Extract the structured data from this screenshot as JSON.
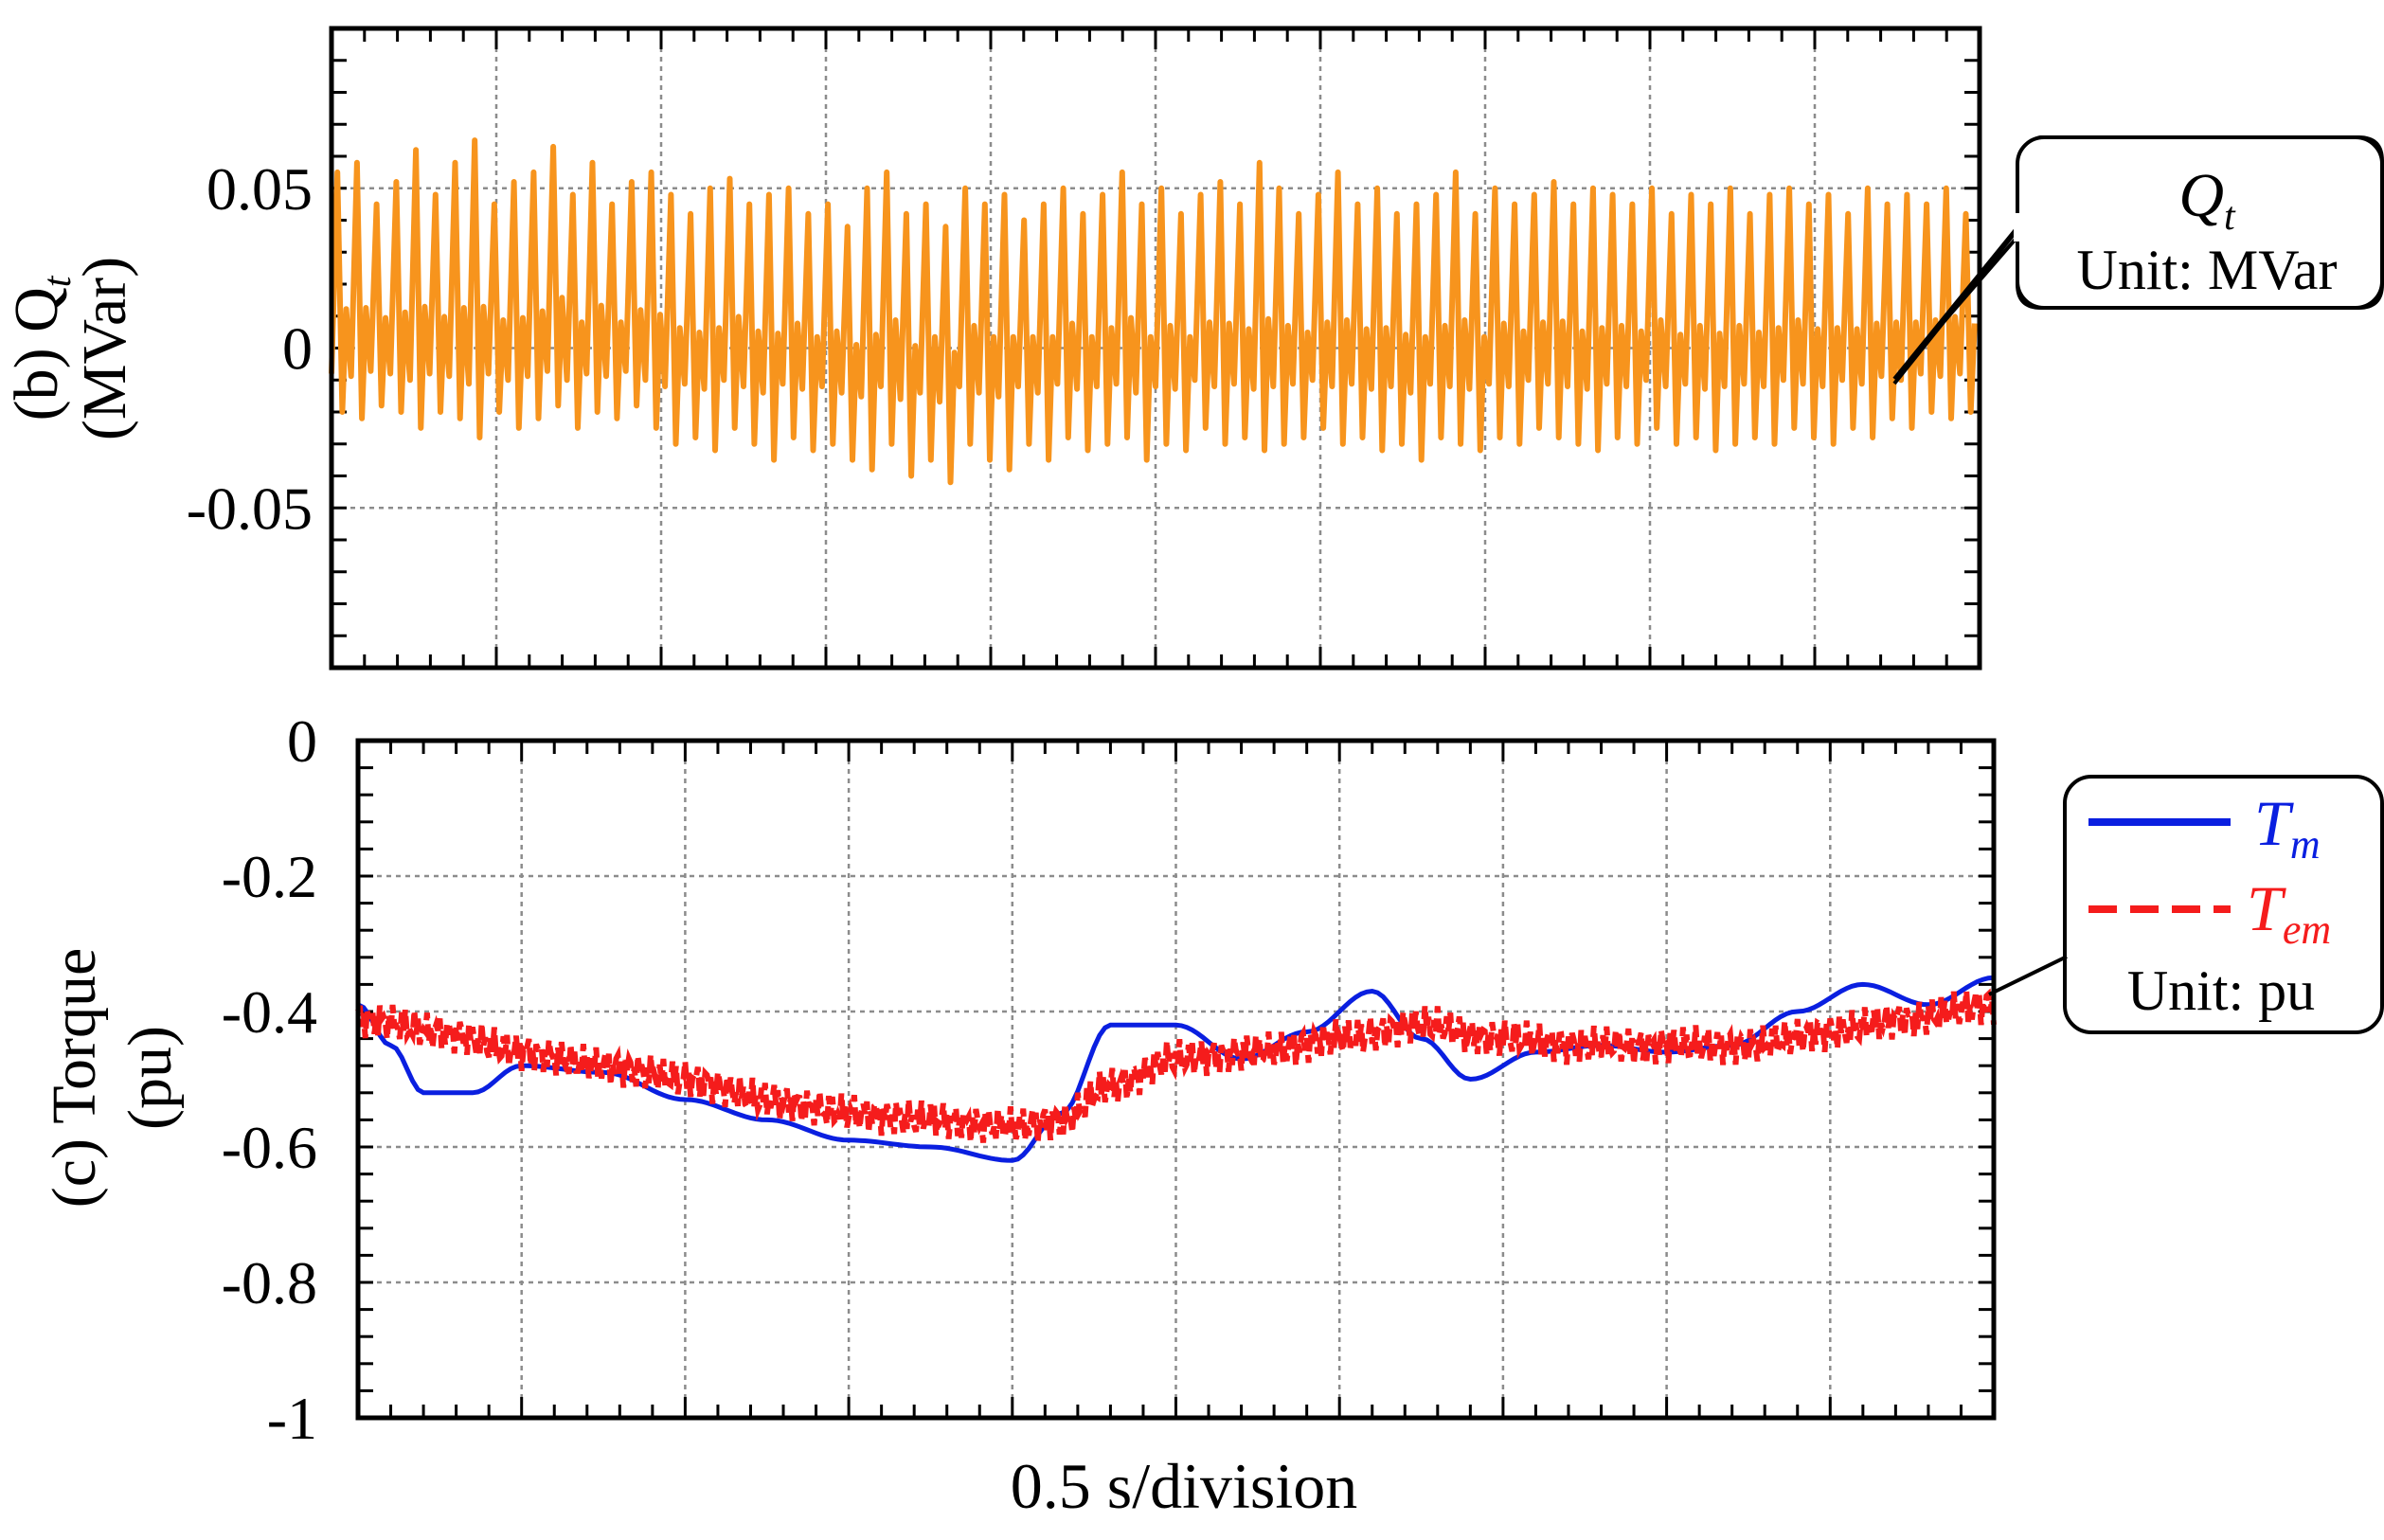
{
  "figure": {
    "xlabel": "0.5 s/division"
  },
  "colors": {
    "qt": "#f7941d",
    "tm": "#0a1fe0",
    "tem": "#f51c1c",
    "grid": "#8c8c8c"
  },
  "chart_data": [
    {
      "id": "qt",
      "type": "line",
      "panel_label": "(b) Q",
      "panel_label_sub": "t",
      "ylabel": "(MVar)",
      "ylim": [
        -0.1,
        0.1
      ],
      "yticks": [
        0.05,
        0,
        -0.05
      ],
      "ytick_labels": [
        "0.05",
        "0",
        "-0.05"
      ],
      "x_divisions": 10,
      "x_unit": "0.5 s/division",
      "grid": true,
      "legend": {
        "placement": "right",
        "name_base": "Q",
        "name_sub": "t",
        "unit_text": "Unit: MVar"
      },
      "series": [
        {
          "name": "Qt",
          "color": "#f7941d",
          "peaks": [
            0.055,
            0.058,
            0.045,
            0.052,
            0.062,
            0.048,
            0.058,
            0.065,
            0.045,
            0.052,
            0.055,
            0.063,
            0.048,
            0.058,
            0.045,
            0.052,
            0.055,
            0.048,
            0.042,
            0.05,
            0.053,
            0.045,
            0.048,
            0.05,
            0.042,
            0.045,
            0.038,
            0.05,
            0.055,
            0.042,
            0.045,
            0.038,
            0.05,
            0.045,
            0.048,
            0.04,
            0.045,
            0.05,
            0.042,
            0.048,
            0.055,
            0.045,
            0.05,
            0.042,
            0.048,
            0.052,
            0.045,
            0.058,
            0.05,
            0.042,
            0.048,
            0.055,
            0.045,
            0.05,
            0.042,
            0.045,
            0.048,
            0.055,
            0.042,
            0.05,
            0.045,
            0.048,
            0.052,
            0.045,
            0.05,
            0.048,
            0.045,
            0.05,
            0.042,
            0.048,
            0.045,
            0.05,
            0.042,
            0.048,
            0.05,
            0.045,
            0.048,
            0.042,
            0.05,
            0.045,
            0.048,
            0.045,
            0.05,
            0.042
          ],
          "troughs": [
            -0.02,
            -0.022,
            -0.018,
            -0.02,
            -0.025,
            -0.02,
            -0.022,
            -0.028,
            -0.02,
            -0.025,
            -0.022,
            -0.018,
            -0.025,
            -0.02,
            -0.022,
            -0.018,
            -0.025,
            -0.03,
            -0.028,
            -0.032,
            -0.025,
            -0.03,
            -0.035,
            -0.028,
            -0.032,
            -0.03,
            -0.035,
            -0.038,
            -0.03,
            -0.04,
            -0.035,
            -0.042,
            -0.03,
            -0.035,
            -0.038,
            -0.03,
            -0.035,
            -0.028,
            -0.032,
            -0.03,
            -0.028,
            -0.035,
            -0.03,
            -0.032,
            -0.025,
            -0.03,
            -0.028,
            -0.032,
            -0.03,
            -0.028,
            -0.025,
            -0.03,
            -0.028,
            -0.032,
            -0.03,
            -0.035,
            -0.028,
            -0.03,
            -0.032,
            -0.028,
            -0.03,
            -0.025,
            -0.028,
            -0.03,
            -0.032,
            -0.028,
            -0.03,
            -0.025,
            -0.03,
            -0.028,
            -0.032,
            -0.03,
            -0.028,
            -0.03,
            -0.025,
            -0.028,
            -0.03,
            -0.025,
            -0.028,
            -0.022,
            -0.025,
            -0.02,
            -0.022,
            -0.02
          ]
        }
      ]
    },
    {
      "id": "torque",
      "type": "line",
      "panel_label": "(c) Torque",
      "ylabel": "(pu)",
      "ylim": [
        -1,
        0
      ],
      "yticks": [
        0,
        -0.2,
        -0.4,
        -0.6,
        -0.8,
        -1
      ],
      "ytick_labels": [
        "0",
        "-0.2",
        "-0.4",
        "-0.6",
        "-0.8",
        "-1"
      ],
      "x_divisions": 10,
      "x_unit": "0.5 s/division",
      "grid": true,
      "legend": {
        "placement": "right",
        "entries": [
          {
            "base": "T",
            "sub": "m",
            "style": "solid"
          },
          {
            "base": "T",
            "sub": "em",
            "style": "dashed"
          }
        ],
        "unit_text": "Unit: pu"
      },
      "series": [
        {
          "name": "Tm",
          "color": "#0a1fe0",
          "style": "solid",
          "x": [
            0,
            0.2,
            0.4,
            0.7,
            1.0,
            1.5,
            2.0,
            2.5,
            3.0,
            3.5,
            4.0,
            4.3,
            4.6,
            5.0,
            5.4,
            5.8,
            6.2,
            6.5,
            6.8,
            7.2,
            7.6,
            8.0,
            8.4,
            8.8,
            9.2,
            9.6,
            10.0
          ],
          "y": [
            -0.39,
            -0.45,
            -0.52,
            -0.52,
            -0.48,
            -0.49,
            -0.53,
            -0.56,
            -0.59,
            -0.6,
            -0.62,
            -0.55,
            -0.42,
            -0.42,
            -0.47,
            -0.43,
            -0.37,
            -0.44,
            -0.5,
            -0.46,
            -0.45,
            -0.46,
            -0.45,
            -0.4,
            -0.36,
            -0.39,
            -0.35
          ]
        },
        {
          "name": "Tem",
          "color": "#f51c1c",
          "style": "dashed",
          "x": [
            0,
            0.5,
            1.0,
            1.5,
            2.0,
            2.5,
            3.0,
            3.5,
            4.0,
            4.3,
            4.6,
            5.0,
            5.5,
            6.0,
            6.5,
            7.0,
            7.5,
            8.0,
            8.5,
            9.0,
            9.5,
            10.0
          ],
          "y": [
            -0.41,
            -0.43,
            -0.46,
            -0.48,
            -0.5,
            -0.53,
            -0.55,
            -0.56,
            -0.57,
            -0.56,
            -0.51,
            -0.47,
            -0.46,
            -0.44,
            -0.42,
            -0.44,
            -0.45,
            -0.45,
            -0.45,
            -0.43,
            -0.41,
            -0.39
          ],
          "ripple_amplitude": 0.03
        }
      ]
    }
  ]
}
